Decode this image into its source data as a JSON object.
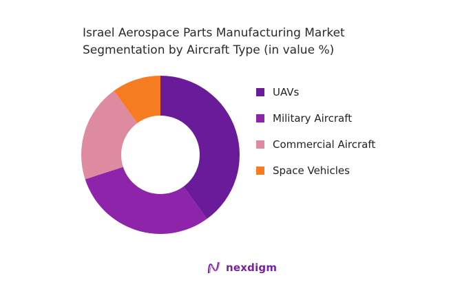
{
  "chart_data": {
    "type": "pie",
    "donut": true,
    "title": "Israel Aerospace Parts Manufacturing Market Segmentation by Aircraft Type (in value %)",
    "title_lines": [
      "Israel Aerospace Parts Manufacturing Market",
      "Segmentation by Aircraft Type (in value %)"
    ],
    "categories": [
      "UAVs",
      "Military Aircraft",
      "Commercial Aircraft",
      "Space Vehicles"
    ],
    "values": [
      40,
      30,
      20,
      10
    ],
    "colors": [
      "#6a1b9a",
      "#8e24aa",
      "#de8aa0",
      "#f57c20"
    ],
    "legend_position": "right"
  },
  "brand": {
    "name": "nexdigm"
  }
}
